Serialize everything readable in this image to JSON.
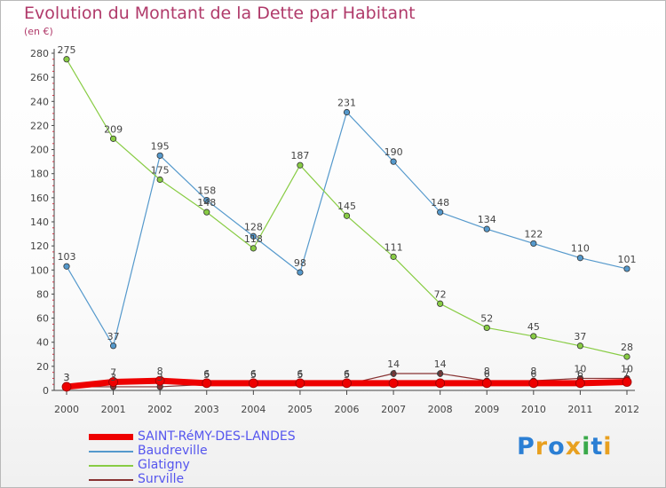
{
  "header": {
    "title": "Evolution du Montant de la Dette par Habitant",
    "unit": "(en €)"
  },
  "chart_data": {
    "type": "line",
    "title": "Evolution du Montant de la Dette par Habitant",
    "subtitle": "(en €)",
    "xlabel": "",
    "ylabel": "",
    "categories": [
      "2000",
      "2001",
      "2002",
      "2003",
      "2004",
      "2005",
      "2006",
      "2007",
      "2008",
      "2009",
      "2010",
      "2011",
      "2012"
    ],
    "ylim": [
      0,
      280
    ],
    "yticks": [
      0,
      20,
      40,
      60,
      80,
      100,
      120,
      140,
      160,
      180,
      200,
      220,
      240,
      260,
      280
    ],
    "grid": false,
    "legend_position": "bottom-left",
    "series": [
      {
        "name": "SAINT-RéMY-DES-LANDES",
        "color": "#ee0000",
        "width": 7,
        "values": [
          3,
          7,
          8,
          6,
          6,
          6,
          6,
          6,
          6,
          6,
          6,
          6,
          7
        ]
      },
      {
        "name": "Baudreville",
        "color": "#5599cc",
        "width": 1.2,
        "values": [
          103,
          37,
          195,
          158,
          128,
          98,
          231,
          190,
          148,
          134,
          122,
          110,
          101
        ]
      },
      {
        "name": "Glatigny",
        "color": "#88cc44",
        "width": 1.2,
        "values": [
          275,
          209,
          175,
          148,
          118,
          187,
          145,
          111,
          72,
          52,
          45,
          37,
          28
        ]
      },
      {
        "name": "Surville",
        "color": "#883333",
        "width": 1.2,
        "values": [
          3,
          3,
          3,
          5,
          5,
          5,
          5,
          14,
          14,
          8,
          8,
          10,
          10
        ]
      }
    ]
  },
  "brand": {
    "letters": [
      "P",
      "r",
      "o",
      "x",
      "i",
      "t",
      "i"
    ],
    "colors": [
      "#2b7fd4",
      "#e8a020",
      "#2b7fd4",
      "#e8a020",
      "#3aa94a",
      "#2b7fd4",
      "#e8a020"
    ]
  }
}
